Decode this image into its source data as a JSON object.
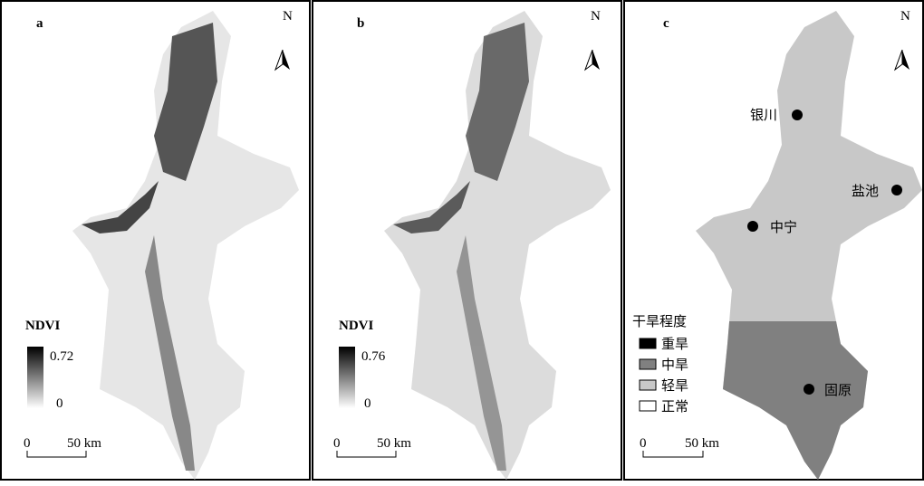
{
  "panels": [
    {
      "label": "a",
      "north": "N",
      "legend": {
        "title": "NDVI",
        "max": 0.72,
        "min": 0
      },
      "scale": {
        "start": 0,
        "end": "50 km"
      }
    },
    {
      "label": "b",
      "north": "N",
      "legend": {
        "title": "NDVI",
        "max": 0.76,
        "min": 0
      },
      "scale": {
        "start": 0,
        "end": "50 km"
      }
    },
    {
      "label": "c",
      "north": "N",
      "cities": [
        "银川",
        "盐池",
        "中宁",
        "固原"
      ],
      "legend": {
        "title": "干旱程度",
        "items": [
          "重旱",
          "中旱",
          "轻旱",
          "正常"
        ]
      },
      "scale": {
        "start": 0,
        "end": "50 km"
      }
    }
  ]
}
